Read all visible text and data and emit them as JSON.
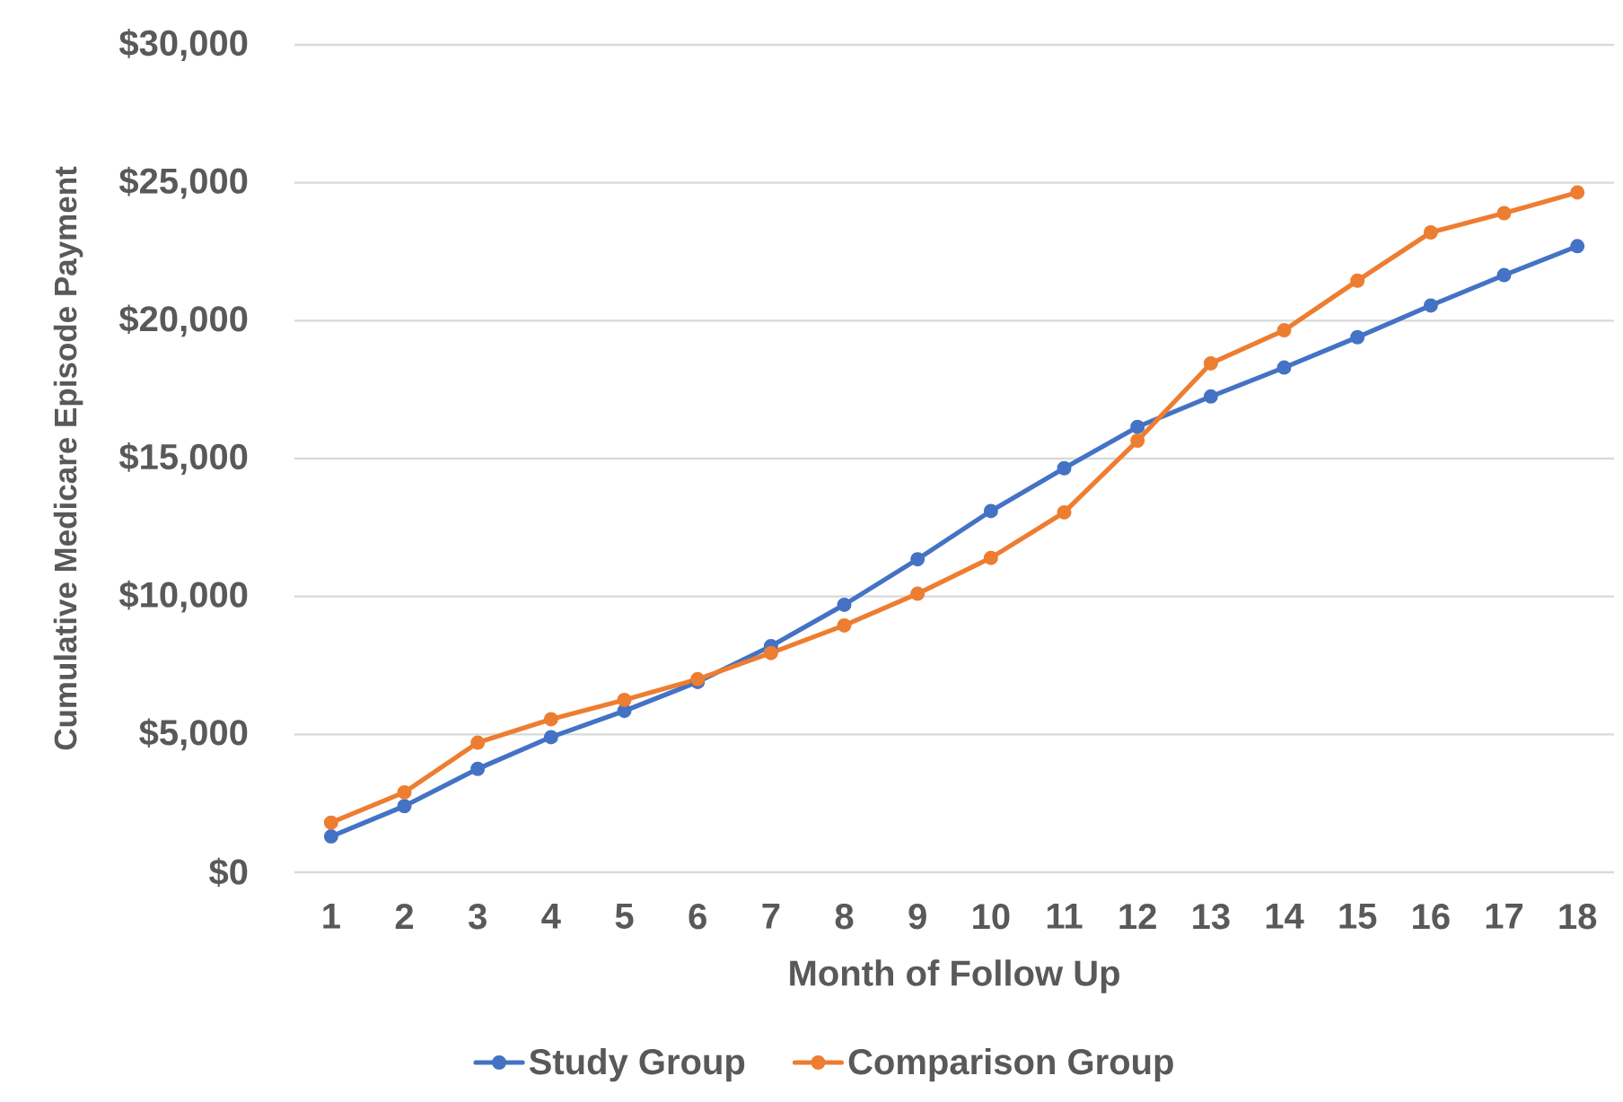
{
  "chart_data": {
    "type": "line",
    "xlabel": "Month of Follow Up",
    "ylabel": "Cumulative Medicare Episode Payment",
    "categories": [
      "1",
      "2",
      "3",
      "4",
      "5",
      "6",
      "7",
      "8",
      "9",
      "10",
      "11",
      "12",
      "13",
      "14",
      "15",
      "16",
      "17",
      "18"
    ],
    "series": [
      {
        "name": "Study Group",
        "color": "#4472c4",
        "values": [
          1300,
          2400,
          3750,
          4900,
          5850,
          6900,
          8200,
          9700,
          11350,
          13100,
          14650,
          16150,
          17250,
          18300,
          19400,
          20550,
          21650,
          22700
        ]
      },
      {
        "name": "Comparison Group",
        "color": "#ed7d31",
        "values": [
          1800,
          2900,
          4700,
          5550,
          6250,
          7000,
          7950,
          8950,
          10100,
          11400,
          13050,
          15650,
          18450,
          19650,
          21450,
          23200,
          23900,
          24650
        ]
      }
    ],
    "ylim": [
      0,
      30000
    ],
    "yticks": [
      {
        "value": 0,
        "label": "$0"
      },
      {
        "value": 5000,
        "label": "$5,000"
      },
      {
        "value": 10000,
        "label": "$10,000"
      },
      {
        "value": 15000,
        "label": "$15,000"
      },
      {
        "value": 20000,
        "label": "$20,000"
      },
      {
        "value": 25000,
        "label": "$25,000"
      },
      {
        "value": 30000,
        "label": "$30,000"
      }
    ],
    "grid": "y",
    "legend": "bottom",
    "marker": "circle",
    "line_style": "solid"
  }
}
